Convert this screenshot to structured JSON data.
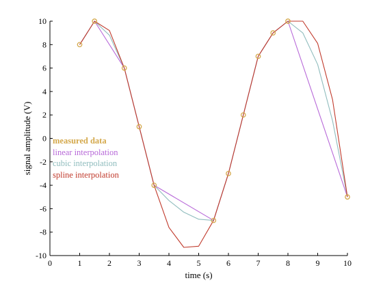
{
  "chart_data": {
    "type": "line",
    "title": "",
    "xlabel": "time (s)",
    "ylabel": "signal amplitude (V)",
    "xlim": [
      0,
      10
    ],
    "ylim": [
      -10,
      10
    ],
    "xticks": [
      0,
      1,
      2,
      3,
      4,
      5,
      6,
      7,
      8,
      9,
      10
    ],
    "yticks": [
      -10,
      -8,
      -6,
      -4,
      -2,
      0,
      2,
      4,
      6,
      8,
      10
    ],
    "grid": false,
    "legend_position": "middle-left",
    "series": [
      {
        "name": "measured data",
        "style": "markers",
        "color": "#d4a84b",
        "x": [
          1,
          1.5,
          2.5,
          3,
          3.5,
          5.5,
          6,
          6.5,
          7,
          7.5,
          8,
          10
        ],
        "y": [
          8,
          10,
          6,
          1,
          -4,
          -7,
          -3,
          2,
          7,
          9,
          10,
          -5
        ]
      },
      {
        "name": "linear interpolation",
        "style": "line",
        "color": "#b768d8",
        "x": [
          1,
          1.5,
          2.5,
          3,
          3.5,
          5.5,
          6,
          6.5,
          7,
          7.5,
          8,
          10
        ],
        "y": [
          8,
          10,
          6,
          1,
          -4,
          -7,
          -3,
          2,
          7,
          9,
          10,
          -5
        ]
      },
      {
        "name": "cubic interpolation",
        "style": "line",
        "color": "#8fbcbd",
        "x": [
          1,
          1.5,
          2,
          2.5,
          3,
          3.5,
          4,
          4.5,
          5,
          5.5,
          6,
          6.5,
          7,
          7.5,
          8,
          8.5,
          9,
          9.5,
          10
        ],
        "y": [
          8,
          10,
          8.8,
          6,
          1,
          -4,
          -5.3,
          -6.3,
          -6.9,
          -7,
          -3,
          2,
          7,
          9,
          10,
          9,
          6.3,
          1.5,
          -5
        ]
      },
      {
        "name": "spline interpolation",
        "style": "line",
        "color": "#c0392b",
        "x": [
          1,
          1.5,
          2,
          2.5,
          3,
          3.5,
          4,
          4.5,
          5,
          5.5,
          6,
          6.5,
          7,
          7.5,
          8,
          8.5,
          9,
          9.5,
          10
        ],
        "y": [
          8,
          10,
          9.2,
          6,
          1,
          -4,
          -7.6,
          -9.3,
          -9.2,
          -7,
          -3,
          2,
          7,
          9,
          10,
          10,
          8.1,
          3.3,
          -5
        ]
      }
    ]
  }
}
